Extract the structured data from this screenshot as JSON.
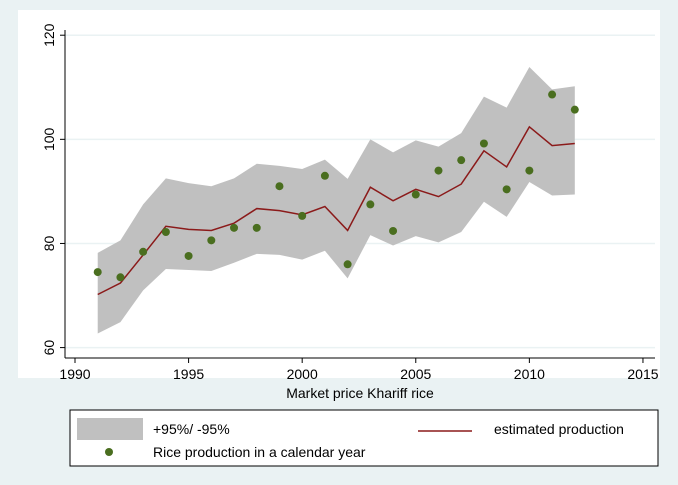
{
  "chart_data": {
    "type": "line",
    "x_label": "Market price Khariff rice",
    "x": [
      1991,
      1992,
      1993,
      1994,
      1995,
      1996,
      1997,
      1998,
      1999,
      2000,
      2001,
      2002,
      2003,
      2004,
      2005,
      2006,
      2007,
      2008,
      2009,
      2010,
      2011,
      2012
    ],
    "xlim": [
      1989.56,
      2015.53
    ],
    "xticks": [
      1990,
      1995,
      2000,
      2005,
      2010,
      2015
    ],
    "ylim": [
      58,
      121
    ],
    "yticks": [
      60,
      80,
      100,
      120
    ],
    "grid": true,
    "series": [
      {
        "name": "+95%/ -95%",
        "type": "band",
        "color": "#c0c0c0",
        "lower": [
          62.7,
          64.9,
          71,
          75.1,
          74.9,
          74.7,
          76.3,
          78,
          77.8,
          76.9,
          78.6,
          73.3,
          81.6,
          79.6,
          81.4,
          80.2,
          82.2,
          88,
          85.1,
          91.8,
          89.2,
          89.4
        ],
        "upper": [
          78.2,
          80.6,
          87.5,
          92.5,
          91.6,
          91,
          92.5,
          95.3,
          94.9,
          94.3,
          96.1,
          92.4,
          100,
          97.5,
          99.8,
          98.6,
          101.2,
          108.2,
          106.1,
          113.9,
          109.6,
          110.2
        ]
      },
      {
        "name": "estimated production",
        "type": "line",
        "color": "#8b1a1a",
        "values": [
          70.2,
          72.4,
          77.8,
          83.3,
          82.7,
          82.5,
          83.9,
          86.7,
          86.3,
          85.5,
          87.1,
          82.5,
          90.8,
          88.2,
          90.4,
          89,
          91.4,
          97.8,
          94.7,
          102.4,
          98.8,
          99.2
        ]
      },
      {
        "name": "Rice production in a calendar year",
        "type": "scatter",
        "color": "#4a6e1f",
        "values": [
          74.5,
          73.5,
          78.4,
          82.2,
          77.6,
          80.6,
          83,
          83,
          91,
          85.3,
          93,
          76,
          87.5,
          82.4,
          89.4,
          94,
          96,
          99.2,
          90.4,
          94,
          108.6,
          105.7
        ]
      }
    ]
  }
}
